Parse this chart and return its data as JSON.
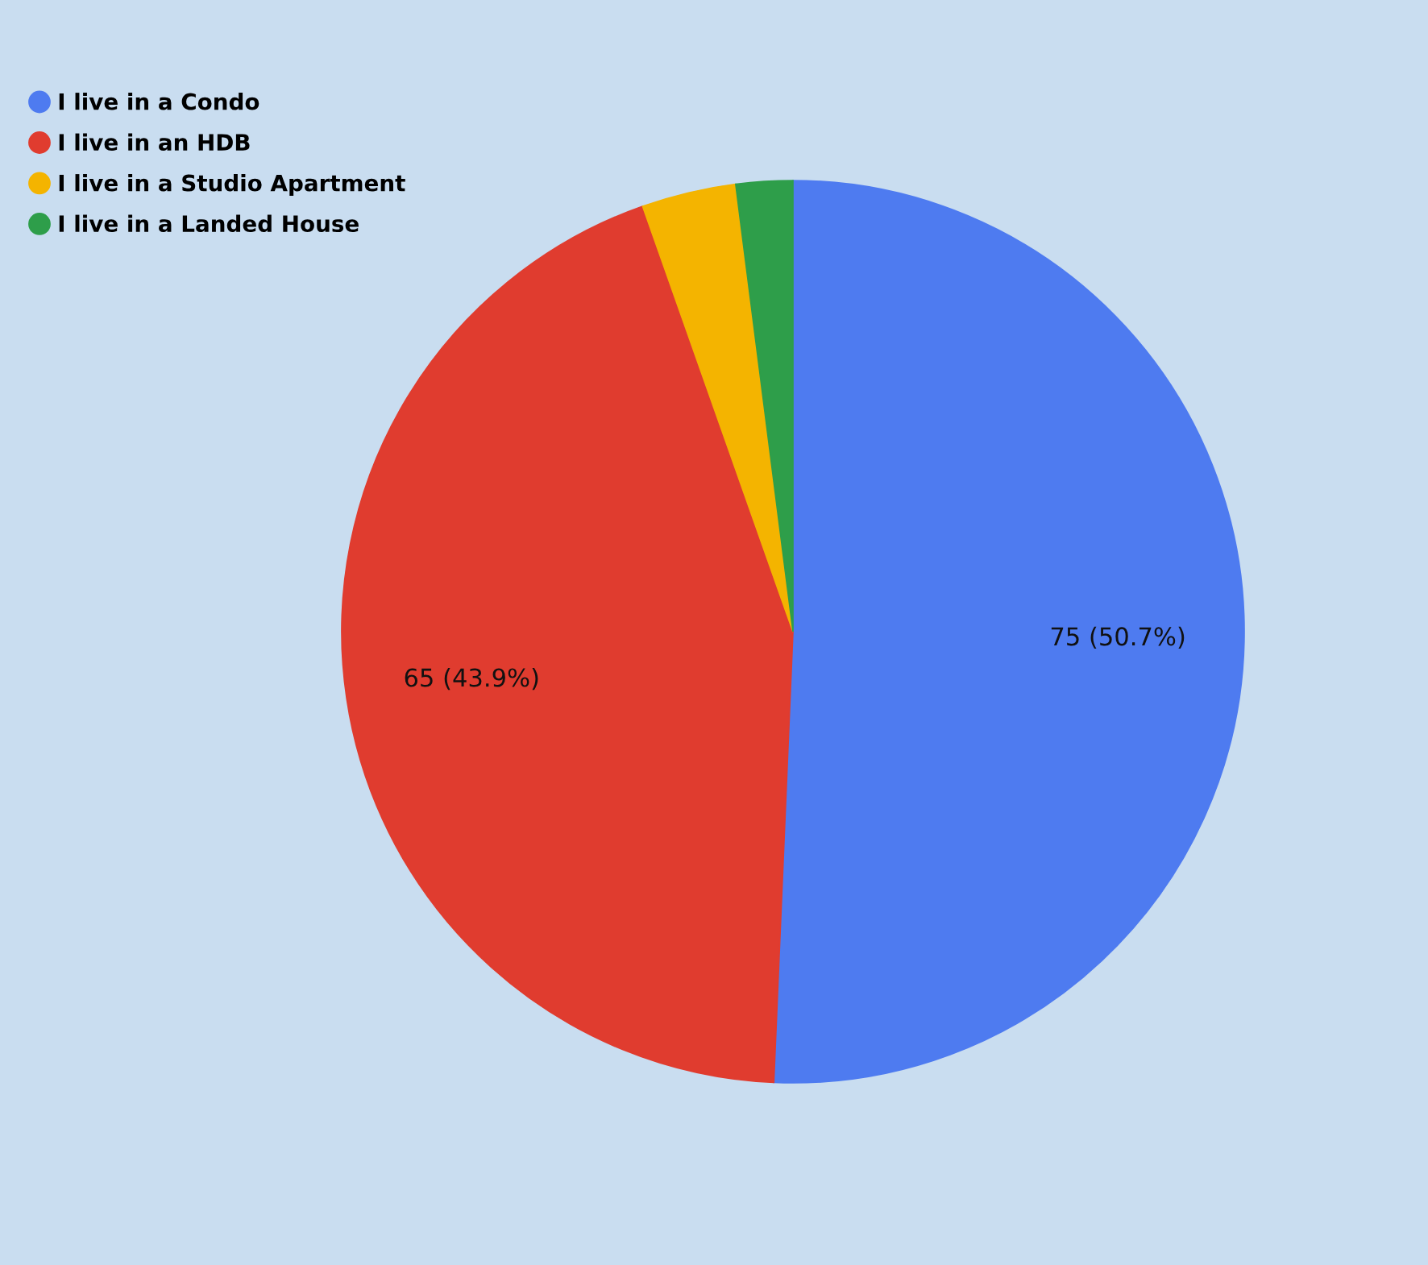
{
  "chart_data": {
    "type": "pie",
    "categories": [
      "I live in a Condo",
      "I live in an HDB",
      "I live in a Studio Apartment",
      "I live in a Landed House"
    ],
    "values": [
      75,
      65,
      5,
      3
    ],
    "colors": [
      "#4e7bf0",
      "#e03c2f",
      "#f4b400",
      "#2e9e4a"
    ],
    "value_labels": [
      "75 (50.7%)",
      "65 (43.9%)",
      null,
      null
    ],
    "legend": "top left"
  }
}
